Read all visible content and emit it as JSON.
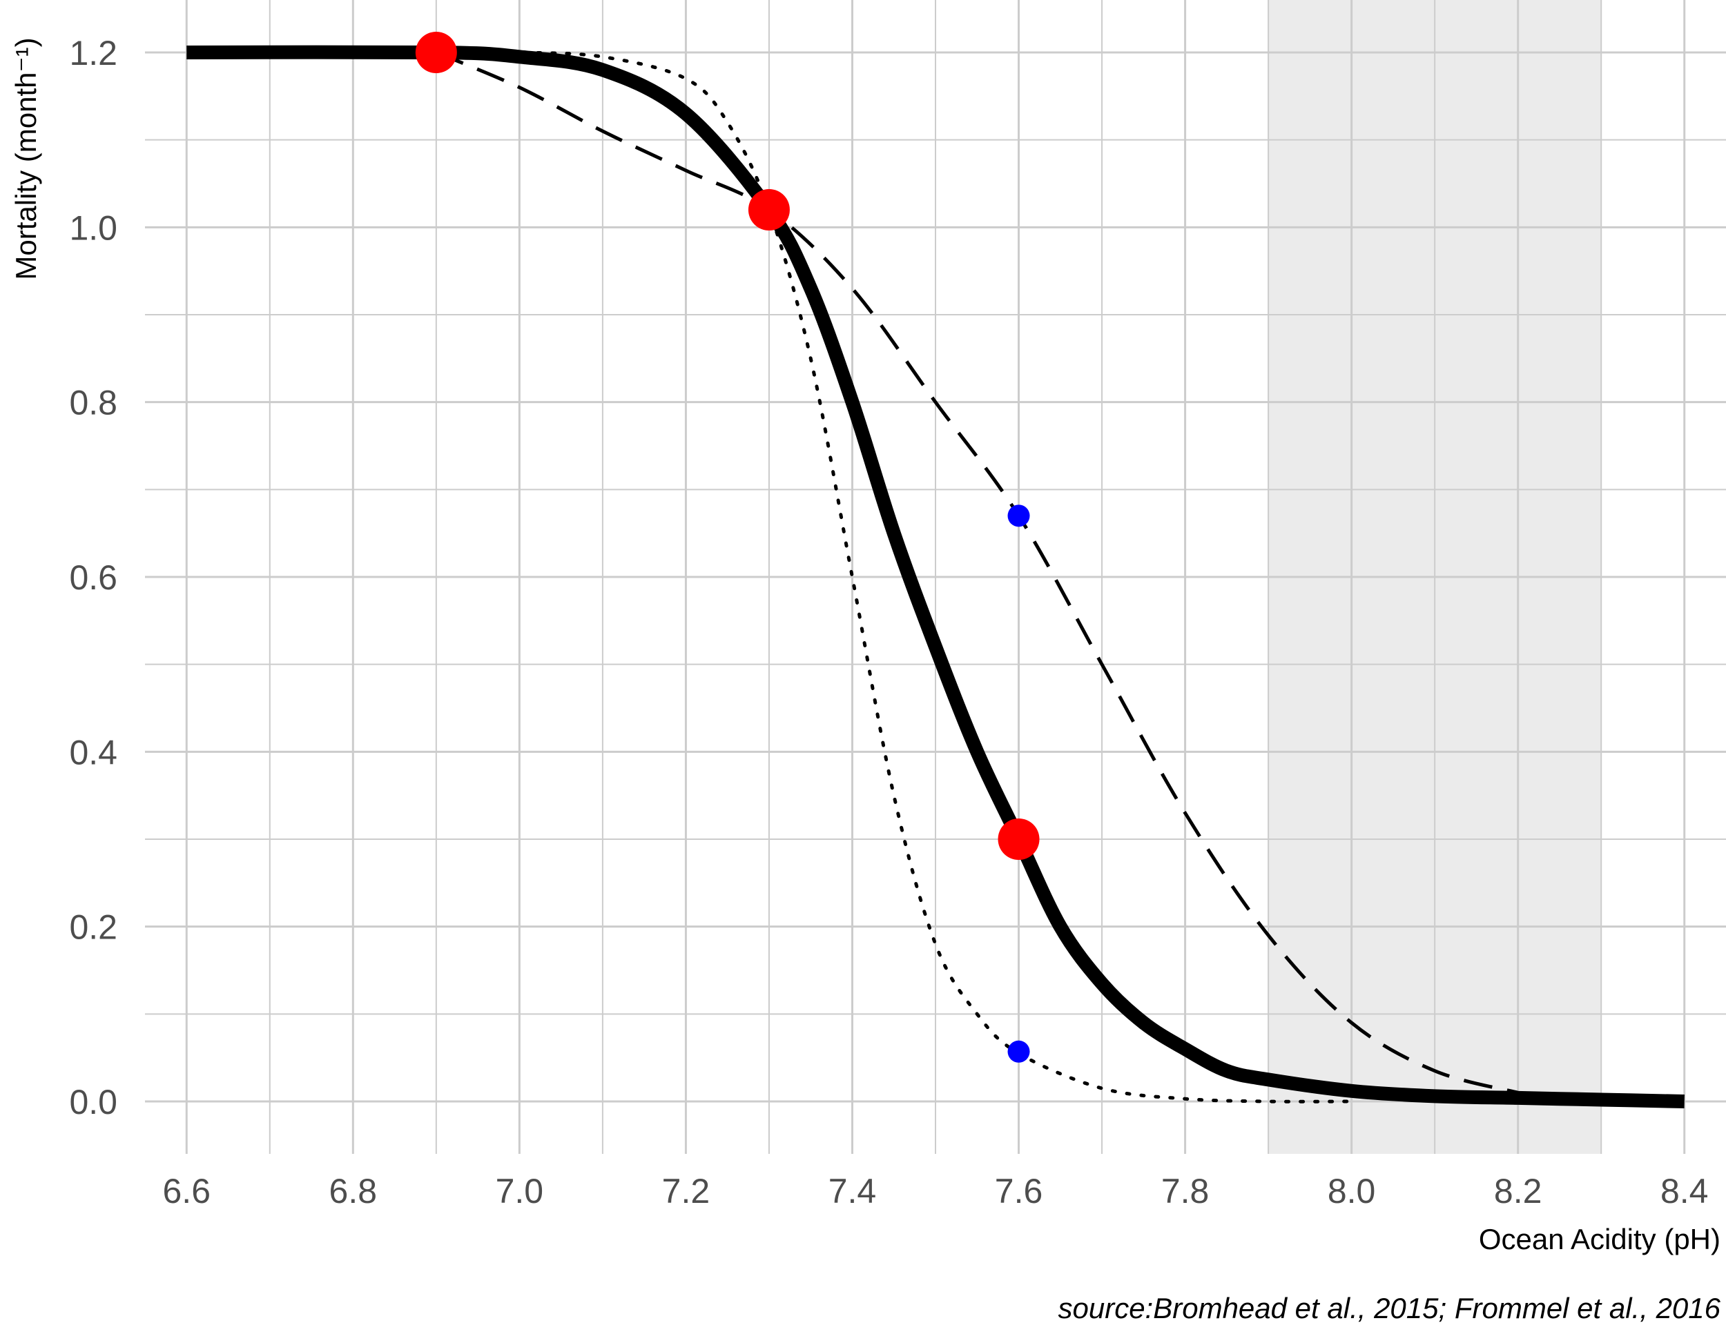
{
  "chart_data": {
    "type": "line",
    "title": "",
    "xlabel": "Ocean Acidity (pH)",
    "ylabel": "Mortality (month⁻¹)",
    "caption": "source:Bromhead et al., 2015; Frommel et al., 2016",
    "xlim": [
      6.55,
      8.45
    ],
    "ylim": [
      -0.06,
      1.26
    ],
    "x_ticks": [
      "6.6",
      "6.8",
      "7.0",
      "7.2",
      "7.4",
      "7.6",
      "7.8",
      "8.0",
      "8.2",
      "8.4"
    ],
    "y_ticks": [
      "0.0",
      "0.2",
      "0.4",
      "0.6",
      "0.8",
      "1.0",
      "1.2"
    ],
    "grid": true,
    "shaded_region": {
      "x": [
        7.9,
        8.3
      ],
      "color": "#ebebeb"
    },
    "series": [
      {
        "style": "solid-thick",
        "color": "#000000",
        "x": [
          6.6,
          6.9,
          7.0,
          7.1,
          7.2,
          7.3,
          7.35,
          7.4,
          7.45,
          7.5,
          7.55,
          7.6,
          7.65,
          7.7,
          7.75,
          7.8,
          7.85,
          7.9,
          8.0,
          8.1,
          8.2,
          8.3,
          8.4
        ],
        "y": [
          1.2,
          1.2,
          1.195,
          1.18,
          1.13,
          1.02,
          0.93,
          0.8,
          0.65,
          0.52,
          0.4,
          0.3,
          0.2,
          0.135,
          0.09,
          0.06,
          0.035,
          0.025,
          0.012,
          0.006,
          0.004,
          0.002,
          0.0
        ]
      },
      {
        "style": "dashed",
        "color": "#000000",
        "x": [
          6.9,
          7.0,
          7.1,
          7.2,
          7.3,
          7.4,
          7.5,
          7.6,
          7.7,
          7.8,
          7.9,
          8.0,
          8.1,
          8.2
        ],
        "y": [
          1.2,
          1.16,
          1.11,
          1.065,
          1.02,
          0.93,
          0.8,
          0.67,
          0.5,
          0.33,
          0.19,
          0.09,
          0.035,
          0.01
        ]
      },
      {
        "style": "dotted",
        "color": "#000000",
        "x": [
          6.9,
          7.0,
          7.1,
          7.2,
          7.25,
          7.3,
          7.35,
          7.4,
          7.45,
          7.5,
          7.55,
          7.6,
          7.7,
          7.8,
          7.9,
          8.0
        ],
        "y": [
          1.2,
          1.2,
          1.195,
          1.17,
          1.12,
          1.02,
          0.85,
          0.6,
          0.35,
          0.18,
          0.1,
          0.055,
          0.015,
          0.003,
          0.0,
          0.0
        ]
      }
    ],
    "points": [
      {
        "x": 6.9,
        "y": 1.2,
        "color": "#ff0000",
        "size": "large"
      },
      {
        "x": 7.3,
        "y": 1.02,
        "color": "#ff0000",
        "size": "large"
      },
      {
        "x": 7.6,
        "y": 0.3,
        "color": "#ff0000",
        "size": "large"
      },
      {
        "x": 7.6,
        "y": 0.67,
        "color": "#0000ff",
        "size": "small"
      },
      {
        "x": 7.6,
        "y": 0.057,
        "color": "#0000ff",
        "size": "small"
      }
    ]
  }
}
